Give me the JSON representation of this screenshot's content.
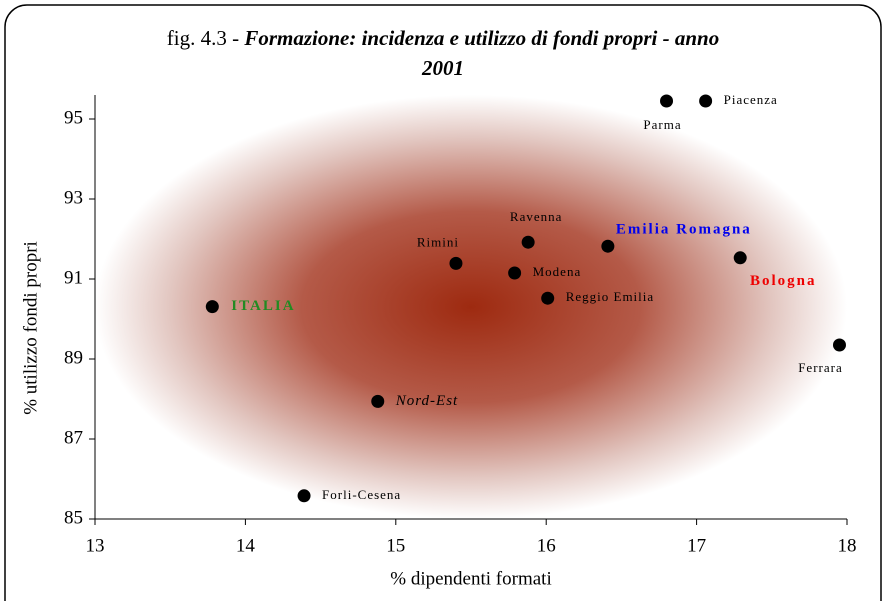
{
  "chart_data": {
    "type": "scatter",
    "title_prefix": "fig. 4.3 - ",
    "title": "Formazione: incidenza e utilizzo di fondi propri - anno 2001",
    "xlabel": "% dipendenti formati",
    "ylabel": "% utilizzo fondi propri",
    "labels": [
      "Parma",
      "Piacenza",
      "Ravenna",
      "Emilia Romagna",
      "Bologna",
      "Rimini",
      "Modena",
      "Reggio Emilia",
      "ITALIA",
      "Ferrara",
      "Nord-Est",
      "Forli-Cesena"
    ],
    "x": [
      16.8,
      17.06,
      15.88,
      16.41,
      17.29,
      15.4,
      15.79,
      16.01,
      13.78,
      17.95,
      14.88,
      14.39
    ],
    "y": [
      95.45,
      95.45,
      91.92,
      91.82,
      91.53,
      91.39,
      91.15,
      90.52,
      90.31,
      89.35,
      87.94,
      85.58
    ],
    "color": "#000000",
    "label_colors": [
      "#000000",
      "#000000",
      "#000000",
      "#0000ee",
      "#ee0000",
      "#000000",
      "#000000",
      "#000000",
      "#228b22",
      "#000000",
      "#000000",
      "#000000"
    ],
    "label_styles": [
      "normal",
      "normal",
      "normal",
      "bold",
      "bold",
      "normal",
      "normal",
      "normal",
      "bold",
      "normal",
      "italic",
      "normal"
    ],
    "xlim": [
      13,
      18
    ],
    "xticks": [
      13,
      14,
      15,
      16,
      17,
      18
    ],
    "ylim": [
      85,
      95.6
    ],
    "yticks": [
      85,
      87,
      89,
      91,
      93,
      95
    ]
  }
}
